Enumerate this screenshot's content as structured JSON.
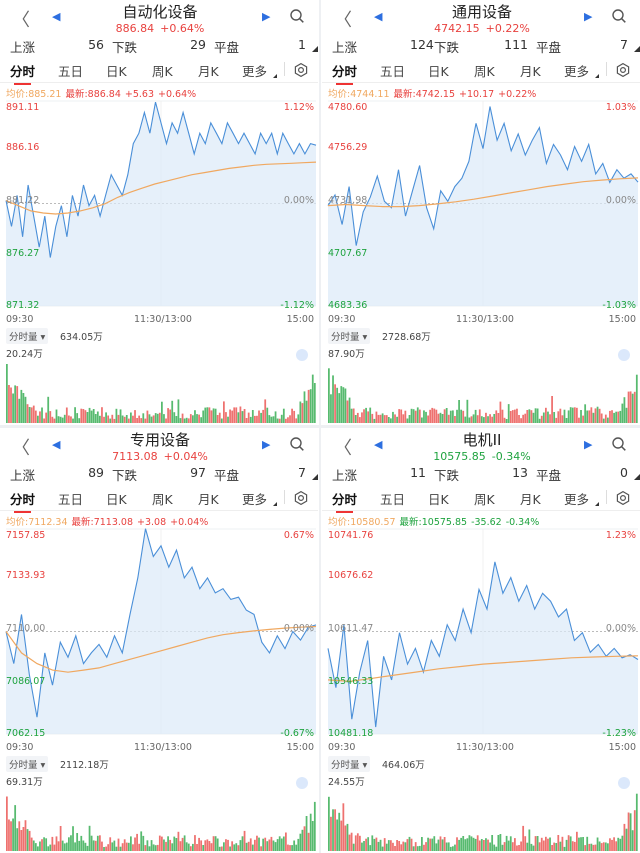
{
  "colors": {
    "up": "#e8423f",
    "down": "#1fa33f",
    "accent": "#2d6fe0",
    "price_line": "#4a8fd8",
    "avg_line": "#f0a860"
  },
  "icons": {
    "back": "chevron-left-icon",
    "prev": "triangle-left-icon",
    "next": "triangle-right-icon",
    "search": "search-icon",
    "settings": "gear-icon",
    "zoom": "zoom-icon"
  },
  "panels": [
    {
      "title": "自动化设备",
      "price": "886.84",
      "change_pct": "+0.64%",
      "stats": {
        "up_label": "上涨",
        "up": "56",
        "down_label": "下跌",
        "down": "29",
        "flat_label": "平盘",
        "flat": "1"
      },
      "tabs": [
        "分时",
        "五日",
        "日K",
        "周K",
        "月K",
        "更多"
      ],
      "avg_label": "均价:885.21",
      "latest_label": "最新:886.84",
      "chg": "+5.63",
      "chg_pct": "+0.64%",
      "y_left": [
        "891.11",
        "886.16",
        "881.22",
        "876.27",
        "871.32"
      ],
      "y_right": [
        "1.12%",
        "0.00%",
        "-1.12%"
      ],
      "x_labels": [
        "09:30",
        "11:30/13:00",
        "15:00"
      ],
      "vol_btn": "分时量",
      "vol_value": "634.05万",
      "vol_max": "20.24万"
    },
    {
      "title": "通用设备",
      "price": "4742.15",
      "change_pct": "+0.22%",
      "stats": {
        "up_label": "上涨",
        "up": "124",
        "down_label": "下跌",
        "down": "111",
        "flat_label": "平盘",
        "flat": "7"
      },
      "tabs": [
        "分时",
        "五日",
        "日K",
        "周K",
        "月K",
        "更多"
      ],
      "avg_label": "均价:4744.11",
      "latest_label": "最新:4742.15",
      "chg": "+10.17",
      "chg_pct": "+0.22%",
      "y_left": [
        "4780.60",
        "4756.29",
        "4731.98",
        "4707.67",
        "4683.36"
      ],
      "y_right": [
        "1.03%",
        "0.00%",
        "-1.03%"
      ],
      "x_labels": [
        "09:30",
        "11:30/13:00",
        "15:00"
      ],
      "vol_btn": "分时量",
      "vol_value": "2728.68万",
      "vol_max": "87.90万"
    },
    {
      "title": "专用设备",
      "price": "7113.08",
      "change_pct": "+0.04%",
      "stats": {
        "up_label": "上涨",
        "up": "89",
        "down_label": "下跌",
        "down": "97",
        "flat_label": "平盘",
        "flat": "7"
      },
      "tabs": [
        "分时",
        "五日",
        "日K",
        "周K",
        "月K",
        "更多"
      ],
      "avg_label": "均价:7112.34",
      "latest_label": "最新:7113.08",
      "chg": "+3.08",
      "chg_pct": "+0.04%",
      "y_left": [
        "7157.85",
        "7133.93",
        "7110.00",
        "7086.07",
        "7062.15"
      ],
      "y_right": [
        "0.67%",
        "0.00%",
        "-0.67%"
      ],
      "x_labels": [
        "09:30",
        "11:30/13:00",
        "15:00"
      ],
      "vol_btn": "分时量",
      "vol_value": "2112.18万",
      "vol_max": "69.31万"
    },
    {
      "title": "电机II",
      "price": "10575.85",
      "change_pct": "-0.34%",
      "stats": {
        "up_label": "上涨",
        "up": "11",
        "down_label": "下跌",
        "down": "13",
        "flat_label": "平盘",
        "flat": "0"
      },
      "tabs": [
        "分时",
        "五日",
        "日K",
        "周K",
        "月K",
        "更多"
      ],
      "avg_label": "均价:10580.57",
      "latest_label": "最新:10575.85",
      "chg": "-35.62",
      "chg_pct": "-0.34%",
      "y_left": [
        "10741.76",
        "10676.62",
        "10611.47",
        "10546.33",
        "10481.18"
      ],
      "y_right": [
        "1.23%",
        "0.00%",
        "-1.23%"
      ],
      "x_labels": [
        "09:30",
        "11:30/13:00",
        "15:00"
      ],
      "vol_btn": "分时量",
      "vol_value": "464.06万",
      "vol_max": "24.55万"
    }
  ],
  "chart_data": [
    {
      "type": "line",
      "title": "自动化设备",
      "ylim": [
        871.32,
        891.11
      ],
      "series": [
        {
          "values": [
            881.5,
            879,
            882,
            878,
            883,
            880,
            877,
            880,
            876,
            879,
            881,
            878,
            882,
            880,
            883,
            881,
            882,
            880,
            882,
            884,
            883,
            882,
            884,
            887,
            888,
            890,
            888,
            891,
            889,
            887,
            889,
            888,
            890,
            888,
            886,
            888,
            887,
            889,
            888,
            887,
            889,
            888,
            887,
            888,
            887,
            886,
            888,
            887,
            888,
            886,
            888,
            887,
            886,
            887,
            886,
            887,
            886.84
          ]
        },
        {
          "values": [
            881.5,
            881,
            880.5,
            880.3,
            880.2,
            880.3,
            880.5,
            880.8,
            881.2,
            881.8,
            882.3,
            882.7,
            883.1,
            883.4,
            883.7,
            884,
            884.2,
            884.4,
            884.6,
            884.75,
            884.9,
            885,
            885.05,
            885.1,
            885.15,
            885.21
          ]
        }
      ]
    },
    {
      "type": "line",
      "title": "通用设备",
      "ylim": [
        4683.36,
        4780.6
      ],
      "series": [
        {
          "values": [
            4731,
            4736,
            4722,
            4740,
            4712,
            4728,
            4735,
            4745,
            4733,
            4730,
            4748,
            4726,
            4738,
            4750,
            4730,
            4720,
            4738,
            4733,
            4740,
            4744,
            4752,
            4770,
            4758,
            4778,
            4762,
            4770,
            4757,
            4765,
            4755,
            4762,
            4768,
            4751,
            4760,
            4755,
            4748,
            4759,
            4752,
            4760,
            4746,
            4751,
            4742,
            4748,
            4744,
            4746,
            4742.15
          ]
        },
        {
          "values": [
            4731,
            4731.5,
            4731,
            4730.5,
            4730.5,
            4731,
            4731.8,
            4732.8,
            4734,
            4735.5,
            4737,
            4738.5,
            4740,
            4741.2,
            4742.3,
            4743.1,
            4743.7,
            4744.11
          ]
        }
      ]
    },
    {
      "type": "line",
      "title": "专用设备",
      "ylim": [
        7062.15,
        7157.85
      ],
      "series": [
        {
          "values": [
            7110,
            7095,
            7118,
            7090,
            7070,
            7100,
            7085,
            7105,
            7098,
            7108,
            7095,
            7100,
            7104,
            7098,
            7108,
            7100,
            7118,
            7135,
            7158,
            7145,
            7150,
            7140,
            7148,
            7135,
            7140,
            7130,
            7135,
            7128,
            7130,
            7125,
            7126,
            7120,
            7118,
            7105,
            7100,
            7108,
            7102,
            7110,
            7106,
            7112,
            7113.08
          ]
        },
        {
          "values": [
            7110,
            7100,
            7095,
            7092,
            7091,
            7092,
            7093,
            7095,
            7097,
            7099,
            7101,
            7103,
            7105,
            7107,
            7108.5,
            7109.5,
            7110.3,
            7111,
            7111.6,
            7112,
            7112.34
          ]
        }
      ]
    },
    {
      "type": "line",
      "title": "电机II",
      "ylim": [
        10481.18,
        10741.76
      ],
      "series": [
        {
          "values": [
            10590,
            10540,
            10620,
            10500,
            10560,
            10600,
            10490,
            10580,
            10550,
            10610,
            10570,
            10590,
            10560,
            10600,
            10580,
            10620,
            10600,
            10640,
            10610,
            10665,
            10640,
            10700,
            10660,
            10680,
            10650,
            10670,
            10640,
            10660,
            10650,
            10630,
            10640,
            10600,
            10610,
            10585,
            10595,
            10580,
            10590,
            10578,
            10582,
            10575.85
          ]
        },
        {
          "values": [
            10550,
            10548,
            10552,
            10556,
            10560,
            10564,
            10567,
            10570,
            10572,
            10574,
            10576,
            10578,
            10579,
            10580,
            10580.57
          ]
        }
      ]
    }
  ]
}
